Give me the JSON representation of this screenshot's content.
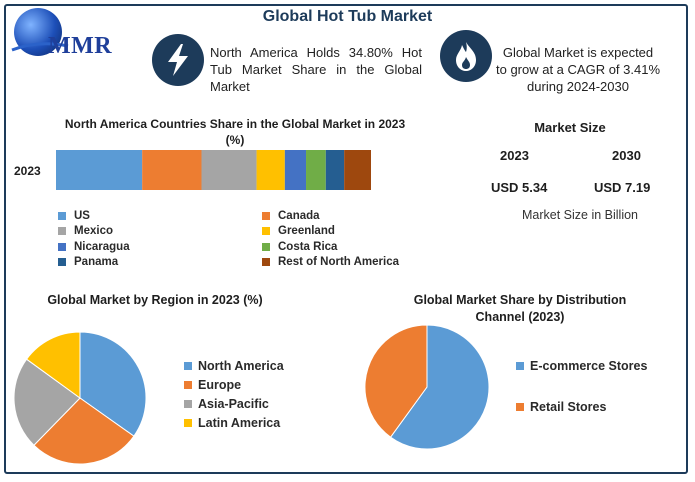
{
  "header": {
    "title": "Global Hot Tub Market",
    "logo_text": "MMR"
  },
  "facts": {
    "north_america": "North America Holds 34.80% Hot Tub Market Share in the Global Market",
    "cagr_line1": "Global Market is expected",
    "cagr_line2": "to grow at a CAGR of 3.41%",
    "cagr_line3": "during 2024-2030"
  },
  "icons": {
    "fact1": "lightning-bolt-icon",
    "fact2": "flame-icon",
    "logo": "globe-logo-icon"
  },
  "market_size": {
    "title": "Market Size",
    "year1": "2023",
    "year2": "2030",
    "value1": "USD 5.34",
    "value2": "USD 7.19",
    "note": "Market Size in Billion"
  },
  "colors": {
    "blue": "#5b9bd5",
    "orange": "#ed7d31",
    "gray": "#a5a5a5",
    "yellow": "#ffc000",
    "royal": "#4472c4",
    "green": "#70ad47",
    "navy": "#255e91",
    "brown": "#9e480e",
    "dark": "#1d3b5a"
  },
  "chart_data": [
    {
      "type": "bar",
      "orientation": "horizontal-stacked",
      "title": "North America Countries Share in the Global Market in 2023 (%)",
      "categories": [
        "2023"
      ],
      "series": [
        {
          "name": "US",
          "values": [
            30.5
          ],
          "color": "#5b9bd5"
        },
        {
          "name": "Canada",
          "values": [
            21.0
          ],
          "color": "#ed7d31"
        },
        {
          "name": "Mexico",
          "values": [
            19.5
          ],
          "color": "#a5a5a5"
        },
        {
          "name": "Greenland",
          "values": [
            10.0
          ],
          "color": "#ffc000"
        },
        {
          "name": "Nicaragua",
          "values": [
            7.5
          ],
          "color": "#4472c4"
        },
        {
          "name": "Costa Rica",
          "values": [
            7.0
          ],
          "color": "#70ad47"
        },
        {
          "name": "Panama",
          "values": [
            6.5
          ],
          "color": "#255e91"
        },
        {
          "name": "Rest of North America",
          "values": [
            9.5
          ],
          "color": "#9e480e"
        }
      ],
      "legend_placement": "bottom"
    },
    {
      "type": "pie",
      "title": "Global Market by Region in 2023 (%)",
      "labels": [
        "North America",
        "Europe",
        "Asia-Pacific",
        "Latin America"
      ],
      "values": [
        34.8,
        27.5,
        22.7,
        15.0
      ],
      "colors": [
        "#5b9bd5",
        "#ed7d31",
        "#a5a5a5",
        "#ffc000"
      ],
      "legend_placement": "right"
    },
    {
      "type": "pie",
      "title": "Global Market Share by Distribution Channel (2023)",
      "labels": [
        "E-commerce Stores",
        "Retail Stores"
      ],
      "values": [
        60.0,
        40.0
      ],
      "colors": [
        "#5b9bd5",
        "#ed7d31"
      ],
      "legend_placement": "right"
    }
  ]
}
